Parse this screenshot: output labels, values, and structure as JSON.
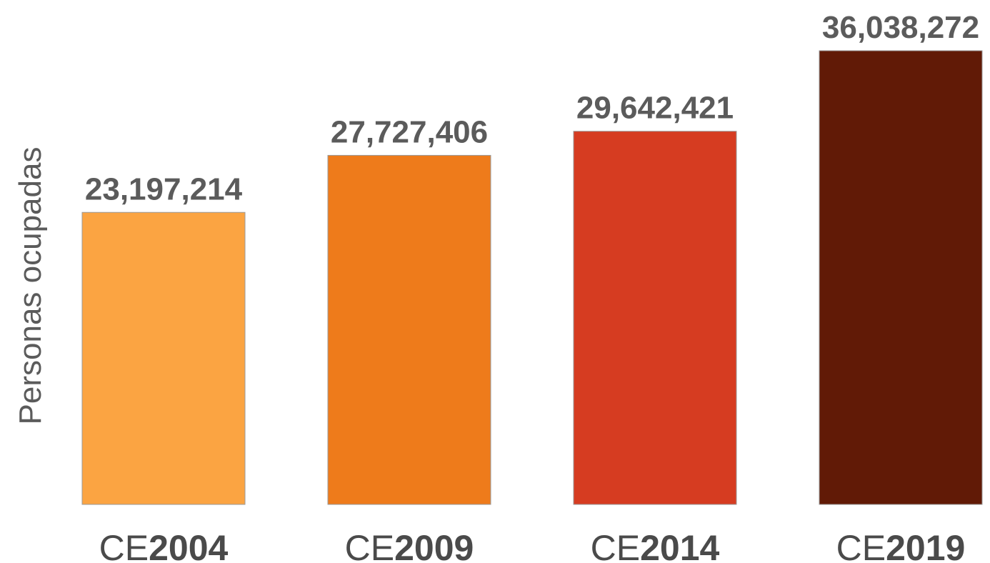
{
  "chart_data": {
    "type": "bar",
    "ylabel": "Personas ocupadas",
    "categories": [
      {
        "prefix": "CE",
        "year": "2004"
      },
      {
        "prefix": "CE",
        "year": "2009"
      },
      {
        "prefix": "CE",
        "year": "2014"
      },
      {
        "prefix": "CE",
        "year": "2019"
      }
    ],
    "values": [
      23197214,
      27727406,
      29642421,
      36038272
    ],
    "data_labels": [
      "23,197,214",
      "27,727,406",
      "29,642,421",
      "36,038,272"
    ],
    "colors": [
      "#FBA442",
      "#EE7B1B",
      "#D63C21",
      "#611A06"
    ],
    "ylim": [
      0,
      40000000
    ],
    "grid": false,
    "legend": "none"
  }
}
